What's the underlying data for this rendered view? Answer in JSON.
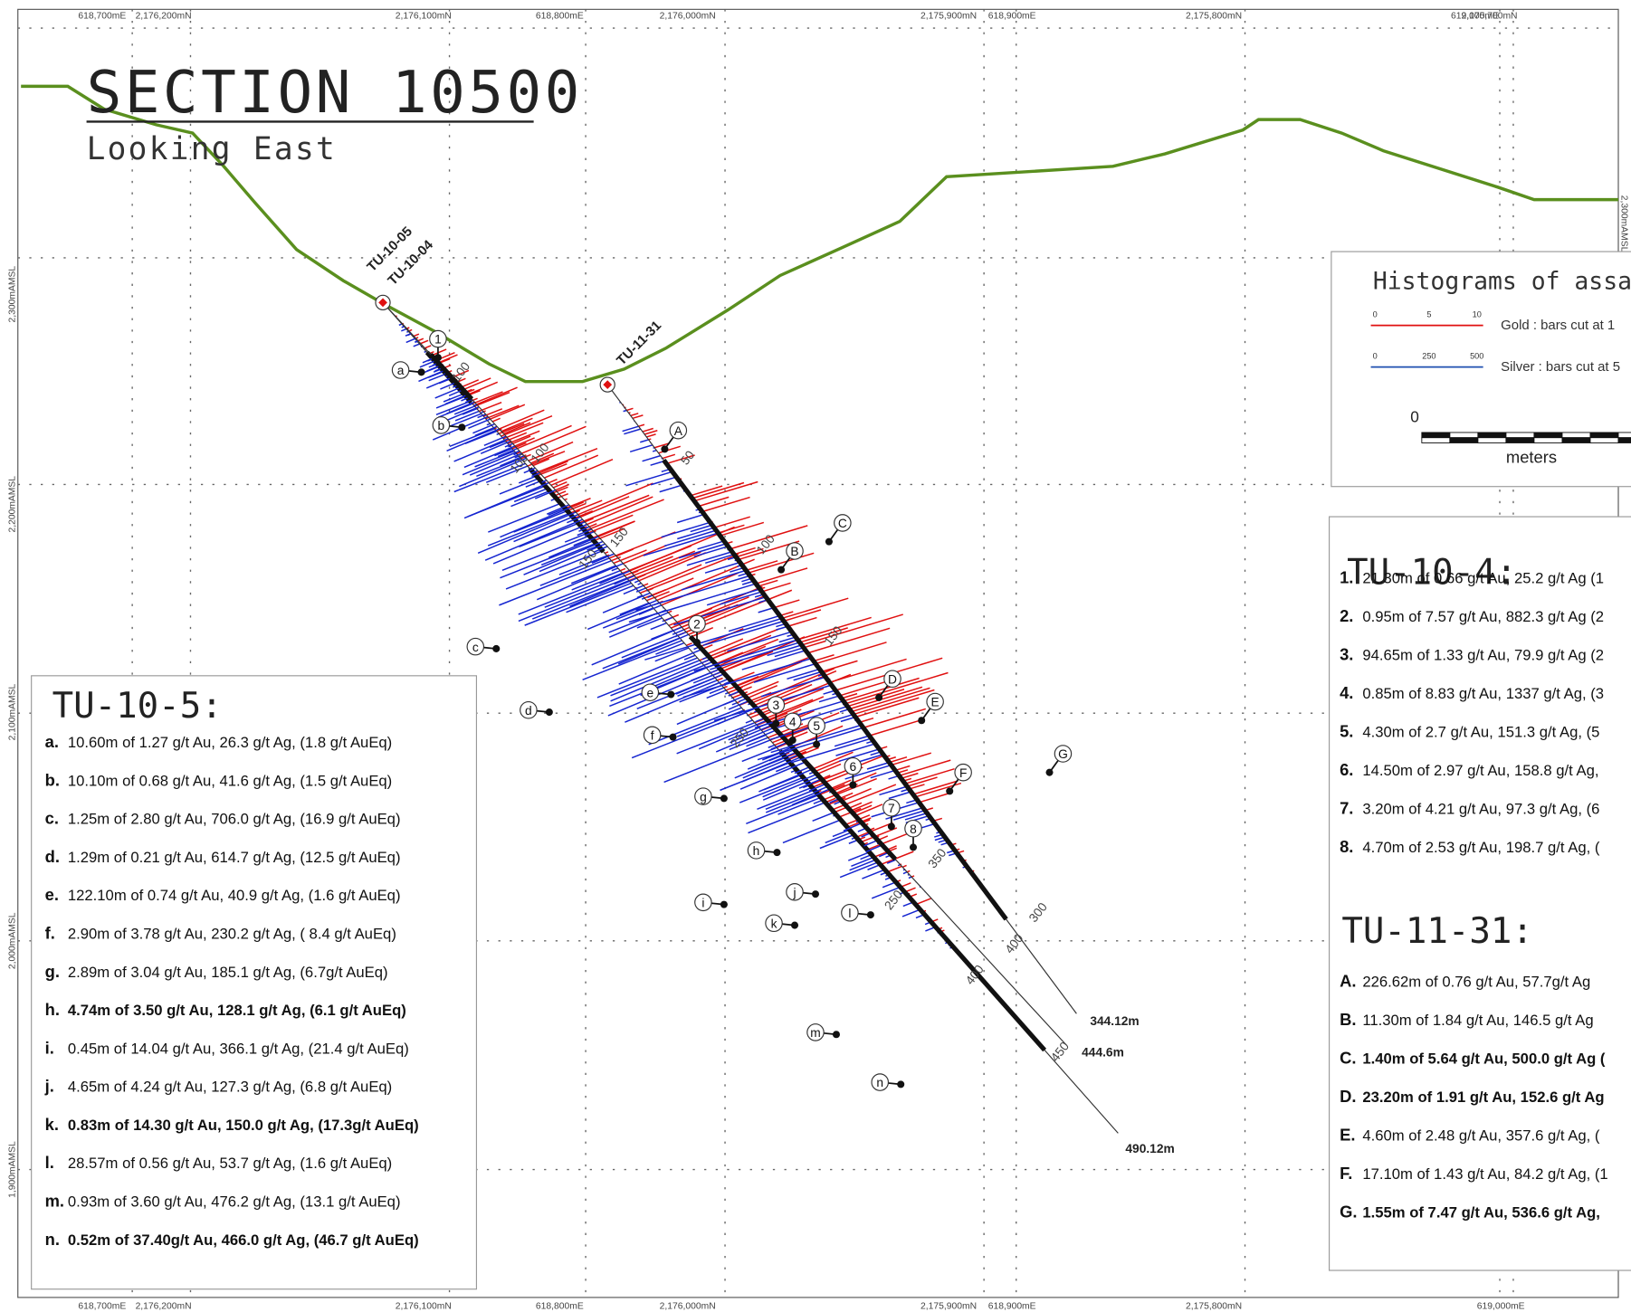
{
  "header": {
    "title": "SECTION 10500",
    "subtitle": "Looking East"
  },
  "grid_labels": {
    "top": [
      "618,700mE",
      "2,176,200mN",
      "2,176,100mN",
      "618,800mE",
      "2,176,000mN",
      "2,175,900mN",
      "618,900mE",
      "2,175,800mN",
      "619,000mE",
      "2,175,700mN"
    ],
    "bottom": [
      "618,700mE",
      "2,176,200mN",
      "2,176,100mN",
      "618,800mE",
      "2,176,000mN",
      "2,175,900mN",
      "618,900mE",
      "2,175,800mN",
      "619,000mE"
    ],
    "left": [
      "2,300mAMSL",
      "2,200mAMSL",
      "2,100mAMSL",
      "2,000mAMSL",
      "1,900mAMSL"
    ],
    "right": [
      "2,300mAMSL"
    ]
  },
  "holes": [
    {
      "label": "TU-10-05"
    },
    {
      "label": "TU-10-04"
    },
    {
      "label": "TU-11-31"
    }
  ],
  "depth_labels": [
    "50",
    "100",
    "150",
    "100",
    "100",
    "150",
    "150",
    "250",
    "250",
    "350",
    "300",
    "400",
    "400",
    "450",
    "100"
  ],
  "end_depths": [
    "344.12m",
    "444.6m",
    "490.12m"
  ],
  "markers": [
    "1",
    "2",
    "3",
    "4",
    "5",
    "6",
    "7",
    "8",
    "a",
    "b",
    "c",
    "d",
    "e",
    "f",
    "g",
    "h",
    "i",
    "j",
    "k",
    "l",
    "m",
    "n",
    "A",
    "B",
    "C",
    "D",
    "E",
    "F",
    "G"
  ],
  "legend": {
    "title": "Histograms of assa",
    "gold_scale": [
      "0",
      "5",
      "10"
    ],
    "gold": "Gold : bars cut at 1",
    "silver_scale": [
      "0",
      "250",
      "500"
    ],
    "silver": "Silver : bars cut at 5",
    "scale_zero": "0",
    "scale_unit": "meters"
  },
  "tables": [
    {
      "title": "TU-10-5:",
      "rows": [
        {
          "key": "a.",
          "text": "10.60m of 1.27 g/t Au, 26.3 g/t Ag, (1.8 g/t AuEq)",
          "bold": false
        },
        {
          "key": "b.",
          "text": "10.10m of 0.68 g/t Au, 41.6 g/t Ag, (1.5 g/t AuEq)",
          "bold": false
        },
        {
          "key": "c.",
          "text": "1.25m  of 2.80 g/t Au, 706.0 g/t Ag, (16.9 g/t AuEq)",
          "bold": false
        },
        {
          "key": "d.",
          "text": "1.29m of 0.21 g/t Au, 614.7 g/t Ag, (12.5 g/t AuEq)",
          "bold": false
        },
        {
          "key": "e.",
          "text": "122.10m of 0.74 g/t Au, 40.9 g/t Ag, (1.6 g/t AuEq)",
          "bold": false
        },
        {
          "key": "f.",
          "text": "2.90m of 3.78 g/t Au, 230.2 g/t Ag, ( 8.4 g/t AuEq)",
          "bold": false
        },
        {
          "key": "g.",
          "text": "2.89m of 3.04 g/t Au, 185.1 g/t Ag, (6.7g/t AuEq)",
          "bold": false
        },
        {
          "key": "h.",
          "text": "4.74m of 3.50 g/t Au, 128.1 g/t Ag, (6.1 g/t AuEq)",
          "bold": true
        },
        {
          "key": "i.",
          "text": "0.45m of 14.04 g/t Au, 366.1 g/t Ag, (21.4 g/t AuEq)",
          "bold": false
        },
        {
          "key": "j.",
          "text": "4.65m of 4.24 g/t Au, 127.3 g/t Ag, (6.8 g/t AuEq)",
          "bold": false
        },
        {
          "key": "k.",
          "text": "0.83m of 14.30 g/t Au, 150.0 g/t Ag, (17.3g/t AuEq)",
          "bold": true
        },
        {
          "key": "l.",
          "text": "28.57m of 0.56 g/t Au, 53.7 g/t Ag, (1.6 g/t AuEq)",
          "bold": false
        },
        {
          "key": "m.",
          "text": "0.93m of 3.60 g/t Au, 476.2 g/t Ag, (13.1 g/t AuEq)",
          "bold": false
        },
        {
          "key": "n.",
          "text": "0.52m of 37.40g/t Au, 466.0 g/t Ag, (46.7 g/t AuEq)",
          "bold": true
        }
      ]
    },
    {
      "title": "TU-10-4:",
      "rows": [
        {
          "key": "1.",
          "text": "21.30m of 0.66 g/t Au, 25.2 g/t Ag (1",
          "bold": false
        },
        {
          "key": "2.",
          "text": "0.95m of 7.57 g/t Au, 882.3 g/t Ag (2",
          "bold": false
        },
        {
          "key": "3.",
          "text": "94.65m of 1.33 g/t Au, 79.9 g/t Ag (2",
          "bold": false
        },
        {
          "key": "4.",
          "text": "0.85m of 8.83 g/t Au, 1337 g/t Ag, (3",
          "bold": false
        },
        {
          "key": "5.",
          "text": "4.30m of 2.7 g/t Au, 151.3 g/t Ag, (5",
          "bold": false
        },
        {
          "key": "6.",
          "text": "14.50m of 2.97 g/t Au, 158.8 g/t Ag,",
          "bold": false
        },
        {
          "key": "7.",
          "text": "3.20m of 4.21 g/t Au, 97.3 g/t Ag, (6",
          "bold": false
        },
        {
          "key": "8.",
          "text": "4.70m of 2.53 g/t Au, 198.7 g/t Ag, (",
          "bold": false
        }
      ]
    },
    {
      "title": "TU-11-31:",
      "rows": [
        {
          "key": "A.",
          "text": "226.62m of 0.76 g/t Au, 57.7g/t Ag",
          "bold": false
        },
        {
          "key": "B.",
          "text": "11.30m of 1.84 g/t Au, 146.5 g/t Ag",
          "bold": false
        },
        {
          "key": "C.",
          "text": "1.40m of 5.64 g/t Au, 500.0 g/t Ag (",
          "bold": true
        },
        {
          "key": "D.",
          "text": "23.20m of 1.91 g/t Au, 152.6 g/t Ag",
          "bold": true
        },
        {
          "key": "E.",
          "text": "4.60m of 2.48 g/t Au, 357.6 g/t Ag, (",
          "bold": false
        },
        {
          "key": "F.",
          "text": "17.10m of 1.43 g/t Au, 84.2 g/t Ag, (1",
          "bold": false
        },
        {
          "key": "G.",
          "text": "1.55m of 7.47 g/t Au, 536.6 g/t Ag,",
          "bold": true
        }
      ]
    }
  ]
}
